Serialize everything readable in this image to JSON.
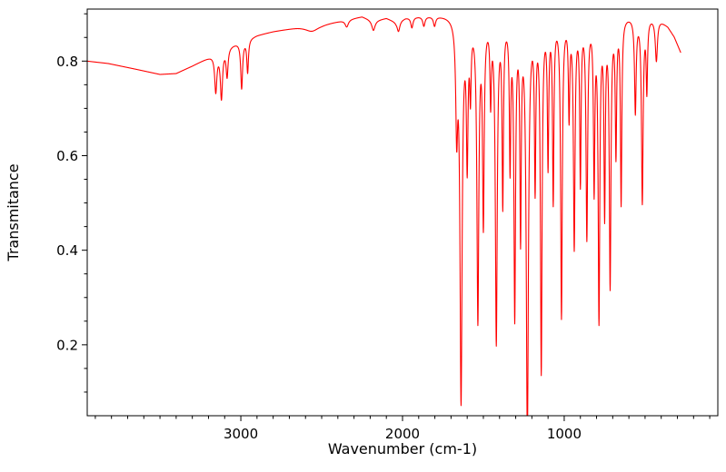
{
  "figure": {
    "background": "#ffffff"
  },
  "chart_data": {
    "type": "line",
    "title": "",
    "xlabel": "Wavenumber (cm-1)",
    "ylabel": "Transmitance",
    "line_color": "#ff0000",
    "axis_color": "#000000",
    "x_axis_reversed": true,
    "xlim": [
      3950,
      50
    ],
    "ylim": [
      0.05,
      0.91
    ],
    "x_ticks": [
      3000,
      2000,
      1000
    ],
    "y_ticks": [
      0.2,
      0.4,
      0.6,
      0.8
    ],
    "x_minor_step": 100,
    "y_minor_step": 0.05,
    "data_range": [
      3950,
      280
    ],
    "baseline_points_wn_T": [
      [
        3950,
        0.8
      ],
      [
        3820,
        0.795
      ],
      [
        3650,
        0.783
      ],
      [
        3500,
        0.772
      ],
      [
        3400,
        0.774
      ],
      [
        3300,
        0.79
      ],
      [
        3200,
        0.808
      ],
      [
        3100,
        0.828
      ],
      [
        3000,
        0.843
      ],
      [
        2900,
        0.855
      ],
      [
        2800,
        0.863
      ],
      [
        2650,
        0.872
      ],
      [
        2500,
        0.878
      ],
      [
        2350,
        0.888
      ],
      [
        2250,
        0.895
      ],
      [
        2180,
        0.886
      ],
      [
        2100,
        0.892
      ],
      [
        2040,
        0.884
      ],
      [
        1980,
        0.893
      ],
      [
        1900,
        0.896
      ],
      [
        1800,
        0.898
      ],
      [
        1700,
        0.9
      ],
      [
        1500,
        0.898
      ],
      [
        1200,
        0.9
      ],
      [
        800,
        0.9
      ],
      [
        500,
        0.898
      ],
      [
        420,
        0.893
      ],
      [
        360,
        0.875
      ],
      [
        320,
        0.853
      ],
      [
        280,
        0.82
      ]
    ],
    "peaks_center_depth_width": [
      [
        3155,
        0.08,
        8
      ],
      [
        3120,
        0.1,
        8
      ],
      [
        3085,
        0.06,
        7
      ],
      [
        2995,
        0.1,
        7
      ],
      [
        2958,
        0.07,
        6
      ],
      [
        2560,
        0.012,
        50
      ],
      [
        2345,
        0.015,
        12
      ],
      [
        2180,
        0.02,
        12
      ],
      [
        2025,
        0.022,
        10
      ],
      [
        1942,
        0.022,
        8
      ],
      [
        1868,
        0.02,
        8
      ],
      [
        1802,
        0.02,
        8
      ],
      [
        1665,
        0.22,
        7
      ],
      [
        1638,
        0.8,
        8
      ],
      [
        1600,
        0.29,
        6
      ],
      [
        1580,
        0.14,
        5
      ],
      [
        1534,
        0.63,
        7
      ],
      [
        1500,
        0.42,
        6
      ],
      [
        1455,
        0.16,
        5
      ],
      [
        1420,
        0.68,
        7
      ],
      [
        1380,
        0.38,
        5
      ],
      [
        1335,
        0.3,
        5
      ],
      [
        1306,
        0.62,
        6
      ],
      [
        1270,
        0.44,
        5
      ],
      [
        1228,
        0.88,
        8
      ],
      [
        1180,
        0.34,
        5
      ],
      [
        1142,
        0.74,
        6
      ],
      [
        1100,
        0.3,
        5
      ],
      [
        1068,
        0.38,
        5
      ],
      [
        1017,
        0.63,
        6
      ],
      [
        970,
        0.2,
        5
      ],
      [
        938,
        0.48,
        6
      ],
      [
        900,
        0.34,
        5
      ],
      [
        860,
        0.46,
        6
      ],
      [
        815,
        0.35,
        5
      ],
      [
        785,
        0.63,
        6
      ],
      [
        750,
        0.4,
        5
      ],
      [
        716,
        0.56,
        6
      ],
      [
        680,
        0.28,
        5
      ],
      [
        648,
        0.39,
        5
      ],
      [
        560,
        0.2,
        6
      ],
      [
        517,
        0.39,
        6
      ],
      [
        489,
        0.15,
        5
      ],
      [
        430,
        0.09,
        8
      ]
    ]
  }
}
